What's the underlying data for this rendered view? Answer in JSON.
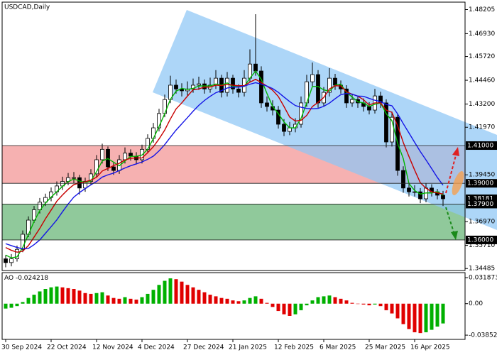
{
  "chart_data": [
    {
      "type": "candlestick",
      "title": "USDCAD,Daily",
      "categories": [
        "30 Sep 2024",
        null,
        null,
        null,
        null,
        null,
        null,
        null,
        "22 Oct 2024",
        null,
        null,
        null,
        null,
        null,
        null,
        null,
        "12 Nov 2024",
        null,
        null,
        null,
        null,
        null,
        null,
        null,
        "4 Dec 2024",
        null,
        null,
        null,
        null,
        null,
        null,
        null,
        "27 Dec 2024",
        null,
        null,
        null,
        null,
        null,
        null,
        null,
        "21 Jan 2025",
        null,
        null,
        null,
        null,
        null,
        null,
        null,
        "12 Feb 2025",
        null,
        null,
        null,
        null,
        null,
        null,
        null,
        "6 Mar 2025",
        null,
        null,
        null,
        null,
        null,
        null,
        null,
        "25 Mar 2025",
        null,
        null,
        null,
        null,
        null,
        null,
        null,
        "16 Apr 2025",
        null,
        null,
        null,
        null,
        null
      ],
      "candles": [
        [
          1.35,
          1.352,
          1.3455,
          1.348
        ],
        [
          1.348,
          1.3525,
          1.346,
          1.35
        ],
        [
          1.35,
          1.357,
          1.3485,
          1.355
        ],
        [
          1.355,
          1.365,
          1.3535,
          1.363
        ],
        [
          1.363,
          1.3725,
          1.3615,
          1.3705
        ],
        [
          1.3705,
          1.378,
          1.369,
          1.376
        ],
        [
          1.376,
          1.3822,
          1.374,
          1.38
        ],
        [
          1.38,
          1.3845,
          1.378,
          1.3825
        ],
        [
          1.3825,
          1.3878,
          1.3805,
          1.3855
        ],
        [
          1.3855,
          1.391,
          1.3835,
          1.3886
        ],
        [
          1.3886,
          1.3935,
          1.3865,
          1.391
        ],
        [
          1.391,
          1.3955,
          1.389,
          1.393
        ],
        [
          1.393,
          1.396,
          1.39,
          1.393
        ],
        [
          1.393,
          1.3945,
          1.384,
          1.3875
        ],
        [
          1.3875,
          1.393,
          1.3855,
          1.391
        ],
        [
          1.391,
          1.3975,
          1.389,
          1.395
        ],
        [
          1.395,
          1.405,
          1.393,
          1.4025
        ],
        [
          1.4025,
          1.411,
          1.4005,
          1.408
        ],
        [
          1.408,
          1.4095,
          1.3965,
          1.3987
        ],
        [
          1.3987,
          1.401,
          1.3945,
          1.3968
        ],
        [
          1.3968,
          1.405,
          1.395,
          1.4025
        ],
        [
          1.4025,
          1.409,
          1.4005,
          1.406
        ],
        [
          1.406,
          1.408,
          1.402,
          1.4044
        ],
        [
          1.4044,
          1.4065,
          1.4,
          1.4025
        ],
        [
          1.4025,
          1.4105,
          1.4005,
          1.408
        ],
        [
          1.408,
          1.416,
          1.406,
          1.4138
        ],
        [
          1.4138,
          1.422,
          1.4115,
          1.4194
        ],
        [
          1.4194,
          1.4295,
          1.4175,
          1.427
        ],
        [
          1.427,
          1.437,
          1.425,
          1.4344
        ],
        [
          1.4344,
          1.447,
          1.4325,
          1.442
        ],
        [
          1.442,
          1.445,
          1.4375,
          1.44
        ],
        [
          1.44,
          1.443,
          1.436,
          1.439
        ],
        [
          1.439,
          1.444,
          1.4365,
          1.44
        ],
        [
          1.44,
          1.4455,
          1.438,
          1.442
        ],
        [
          1.442,
          1.4465,
          1.4395,
          1.4427
        ],
        [
          1.4427,
          1.445,
          1.4375,
          1.44
        ],
        [
          1.44,
          1.446,
          1.438,
          1.442
        ],
        [
          1.442,
          1.45,
          1.44,
          1.4457
        ],
        [
          1.4457,
          1.4475,
          1.4355,
          1.4382
        ],
        [
          1.4382,
          1.449,
          1.436,
          1.4457
        ],
        [
          1.4457,
          1.4475,
          1.4375,
          1.44
        ],
        [
          1.44,
          1.4425,
          1.4355,
          1.4382
        ],
        [
          1.4382,
          1.45,
          1.436,
          1.4457
        ],
        [
          1.4457,
          1.461,
          1.4435,
          1.4532
        ],
        [
          1.4532,
          1.4796,
          1.447,
          1.4495
        ],
        [
          1.4495,
          1.452,
          1.43,
          1.4326
        ],
        [
          1.4326,
          1.436,
          1.428,
          1.4307
        ],
        [
          1.4307,
          1.434,
          1.426,
          1.4288
        ],
        [
          1.4288,
          1.431,
          1.419,
          1.4213
        ],
        [
          1.4213,
          1.424,
          1.415,
          1.4175
        ],
        [
          1.4175,
          1.4225,
          1.4155,
          1.4194
        ],
        [
          1.4194,
          1.4245,
          1.417,
          1.4213
        ],
        [
          1.4213,
          1.436,
          1.4195,
          1.4326
        ],
        [
          1.4326,
          1.4475,
          1.4305,
          1.4438
        ],
        [
          1.4438,
          1.454,
          1.4415,
          1.4476
        ],
        [
          1.4476,
          1.45,
          1.43,
          1.4326
        ],
        [
          1.4326,
          1.441,
          1.4305,
          1.4382
        ],
        [
          1.4382,
          1.451,
          1.436,
          1.4457
        ],
        [
          1.4457,
          1.448,
          1.4395,
          1.442
        ],
        [
          1.442,
          1.4445,
          1.4375,
          1.44
        ],
        [
          1.44,
          1.442,
          1.43,
          1.4326
        ],
        [
          1.4326,
          1.4375,
          1.4305,
          1.4344
        ],
        [
          1.4344,
          1.4365,
          1.43,
          1.4326
        ],
        [
          1.4326,
          1.435,
          1.428,
          1.4307
        ],
        [
          1.4307,
          1.433,
          1.4265,
          1.4288
        ],
        [
          1.4288,
          1.44,
          1.427,
          1.4363
        ],
        [
          1.4363,
          1.4385,
          1.43,
          1.4326
        ],
        [
          1.4326,
          1.4345,
          1.409,
          1.4119
        ],
        [
          1.4119,
          1.428,
          1.4095,
          1.425
        ],
        [
          1.425,
          1.427,
          1.394,
          1.3968
        ],
        [
          1.3968,
          1.399,
          1.385,
          1.3875
        ],
        [
          1.3875,
          1.39,
          1.383,
          1.3855
        ],
        [
          1.3855,
          1.389,
          1.383,
          1.3855
        ],
        [
          1.3855,
          1.3875,
          1.3795,
          1.3818
        ],
        [
          1.3818,
          1.39,
          1.38,
          1.3875
        ],
        [
          1.3875,
          1.3895,
          1.383,
          1.3855
        ],
        [
          1.3855,
          1.387,
          1.3815,
          1.3837
        ],
        [
          1.3837,
          1.386,
          1.378,
          1.38181
        ]
      ],
      "up_color": "#ffffff",
      "down_color": "#000000",
      "moving_averages": [
        {
          "color": "#00b400",
          "values": [
            1.352,
            1.3505,
            1.351,
            1.356,
            1.3628,
            1.3698,
            1.3755,
            1.3795,
            1.3827,
            1.3855,
            1.3884,
            1.3909,
            1.3923,
            1.3912,
            1.3905,
            1.3912,
            1.3962,
            1.4018,
            1.4031,
            1.4012,
            1.3993,
            1.4018,
            1.4043,
            1.4043,
            1.405,
            1.4081,
            1.4137,
            1.4201,
            1.4269,
            1.4345,
            1.4388,
            1.4403,
            1.4397,
            1.4403,
            1.4416,
            1.4416,
            1.4416,
            1.4426,
            1.442,
            1.4432,
            1.4413,
            1.4413,
            1.4413,
            1.4457,
            1.4495,
            1.4451,
            1.4376,
            1.4307,
            1.4269,
            1.4225,
            1.4194,
            1.4194,
            1.4244,
            1.4326,
            1.4413,
            1.4413,
            1.4395,
            1.4388,
            1.442,
            1.4426,
            1.4382,
            1.4357,
            1.4332,
            1.4326,
            1.4307,
            1.4319,
            1.4326,
            1.4269,
            1.4232,
            1.4112,
            1.4031,
            1.3899,
            1.3862,
            1.3843,
            1.3849,
            1.3849,
            1.3856,
            1.3837
          ]
        },
        {
          "color": "#c80000",
          "values": [
            1.356,
            1.3545,
            1.3535,
            1.354,
            1.357,
            1.3615,
            1.3661,
            1.3712,
            1.3758,
            1.3805,
            1.3838,
            1.3868,
            1.3893,
            1.3902,
            1.3908,
            1.3917,
            1.3932,
            1.3965,
            1.3979,
            1.3994,
            1.4006,
            1.4024,
            1.4032,
            1.4035,
            1.4034,
            1.4062,
            1.4094,
            1.4135,
            1.4182,
            1.4241,
            1.4294,
            1.4326,
            1.4362,
            1.4396,
            1.44,
            1.441,
            1.441,
            1.442,
            1.4418,
            1.4424,
            1.442,
            1.4417,
            1.4417,
            1.4436,
            1.4451,
            1.4434,
            1.4415,
            1.4393,
            1.436,
            1.4307,
            1.4251,
            1.423,
            1.4234,
            1.426,
            1.4307,
            1.4329,
            1.4355,
            1.44,
            1.4417,
            1.4416,
            1.4385,
            1.4372,
            1.4362,
            1.4343,
            1.4315,
            1.4326,
            1.4326,
            1.4288,
            1.4276,
            1.4205,
            1.4116,
            1.4042,
            1.397,
            1.3903,
            1.3874,
            1.3855,
            1.3849,
            1.3843
          ]
        },
        {
          "color": "#1414e6",
          "values": [
            1.358,
            1.357,
            1.356,
            1.3553,
            1.3555,
            1.3575,
            1.36,
            1.3635,
            1.367,
            1.3706,
            1.3749,
            1.379,
            1.3827,
            1.3851,
            1.3872,
            1.3892,
            1.391,
            1.3933,
            1.3945,
            1.3954,
            1.3968,
            1.3981,
            1.3993,
            1.4003,
            1.4013,
            1.4027,
            1.4044,
            1.4072,
            1.4105,
            1.4144,
            1.4182,
            1.4215,
            1.4248,
            1.4282,
            1.4313,
            1.4339,
            1.4361,
            1.438,
            1.4391,
            1.4405,
            1.441,
            1.441,
            1.4415,
            1.4425,
            1.4433,
            1.4426,
            1.4415,
            1.4402,
            1.4382,
            1.4357,
            1.4333,
            1.4312,
            1.4303,
            1.4297,
            1.4295,
            1.4297,
            1.4308,
            1.4325,
            1.4348,
            1.437,
            1.4376,
            1.4372,
            1.4362,
            1.4361,
            1.435,
            1.434,
            1.4333,
            1.4318,
            1.4311,
            1.4268,
            1.4216,
            1.4167,
            1.4117,
            1.4068,
            1.4024,
            1.3978,
            1.3931,
            1.389
          ]
        }
      ],
      "zones": [
        {
          "from": 1.39,
          "to": 1.41,
          "color": "#f5a3a3"
        },
        {
          "from": 1.36,
          "to": 1.379,
          "color": "#7cc08a"
        }
      ],
      "levels": [
        {
          "value": 1.41,
          "label": "1.41000"
        },
        {
          "value": 1.39,
          "label": "1.39000"
        },
        {
          "value": 1.379,
          "label": "1.37900"
        },
        {
          "value": 1.36,
          "label": "1.36000"
        }
      ],
      "ylim": [
        1.3438,
        1.486
      ],
      "yticks": [
        1.48205,
        {
          "value": 1.4693,
          "label": "1.46930"
        },
        {
          "value": 1.4572,
          "label": "1.45720"
        },
        {
          "value": 1.4446,
          "label": "1.44460"
        },
        {
          "value": 1.432,
          "label": "1.43200"
        },
        {
          "value": 1.4197,
          "label": "1.41970"
        },
        {
          "value": 1.3945,
          "label": "1.39450"
        },
        {
          "value": 1.3697,
          "label": "1.36970"
        },
        {
          "value": 1.3571,
          "label": "1.35710"
        },
        1.34485
      ]
    },
    {
      "type": "bar",
      "title": "AO",
      "values": [
        -0.006,
        -0.005,
        -0.003,
        0.002,
        0.007,
        0.011,
        0.015,
        0.018,
        0.02,
        0.021,
        0.02,
        0.019,
        0.018,
        0.016,
        0.013,
        0.012,
        0.013,
        0.014,
        0.01,
        0.007,
        0.006,
        0.008,
        0.006,
        0.005,
        0.008,
        0.012,
        0.017,
        0.023,
        0.028,
        0.031,
        0.03,
        0.027,
        0.023,
        0.02,
        0.017,
        0.014,
        0.011,
        0.009,
        0.007,
        0.006,
        0.004,
        0.003,
        0.004,
        0.007,
        0.009,
        0.006,
        0.001,
        -0.004,
        -0.009,
        -0.013,
        -0.015,
        -0.013,
        -0.008,
        -0.002,
        0.004,
        0.008,
        0.009,
        0.01,
        0.008,
        0.006,
        0.004,
        0.001,
        0,
        -0.001,
        -0.002,
        -0.001,
        -0.003,
        -0.008,
        -0.012,
        -0.018,
        -0.025,
        -0.031,
        -0.035,
        -0.036,
        -0.035,
        -0.032,
        -0.028,
        -0.024218
      ],
      "up_color": "#00b000",
      "down_color": "#e00000",
      "ylim": [
        -0.0437,
        0.038
      ],
      "yticks": [
        0.031873,
        {
          "value": 0,
          "label": "0.00"
        },
        -0.038529
      ]
    }
  ]
}
